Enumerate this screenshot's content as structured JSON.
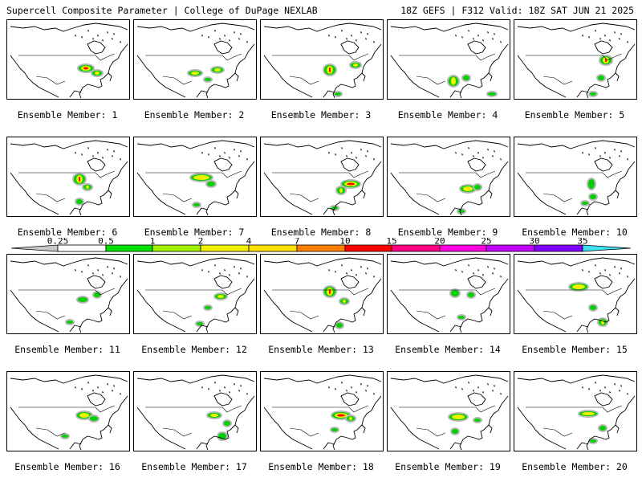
{
  "header": {
    "left": "Supercell Composite Parameter | College of DuPage NEXLAB",
    "right": "18Z GEFS | F312 Valid: 18Z SAT JUN 21 2025"
  },
  "members": [
    {
      "label": "Ensemble Member: 1"
    },
    {
      "label": "Ensemble Member: 2"
    },
    {
      "label": "Ensemble Member: 3"
    },
    {
      "label": "Ensemble Member: 4"
    },
    {
      "label": "Ensemble Member: 5"
    },
    {
      "label": "Ensemble Member: 6"
    },
    {
      "label": "Ensemble Member: 7"
    },
    {
      "label": "Ensemble Member: 8"
    },
    {
      "label": "Ensemble Member: 9"
    },
    {
      "label": "Ensemble Member: 10"
    },
    {
      "label": "Ensemble Member: 11"
    },
    {
      "label": "Ensemble Member: 12"
    },
    {
      "label": "Ensemble Member: 13"
    },
    {
      "label": "Ensemble Member: 14"
    },
    {
      "label": "Ensemble Member: 15"
    },
    {
      "label": "Ensemble Member: 16"
    },
    {
      "label": "Ensemble Member: 17"
    },
    {
      "label": "Ensemble Member: 18"
    },
    {
      "label": "Ensemble Member: 19"
    },
    {
      "label": "Ensemble Member: 20"
    }
  ],
  "colorbar": {
    "ticks": [
      "0.25",
      "0.5",
      "1",
      "2",
      "4",
      "7",
      "10",
      "15",
      "20",
      "25",
      "30",
      "35"
    ],
    "colors": [
      "#ffffff",
      "#00e000",
      "#a0f000",
      "#f0f000",
      "#ffe000",
      "#ff8000",
      "#ff0000",
      "#ff0080",
      "#ff00e0",
      "#c000ff",
      "#8000ff",
      "#b080e0",
      "#40e0f0"
    ],
    "low_color": "#c8c8c8"
  }
}
